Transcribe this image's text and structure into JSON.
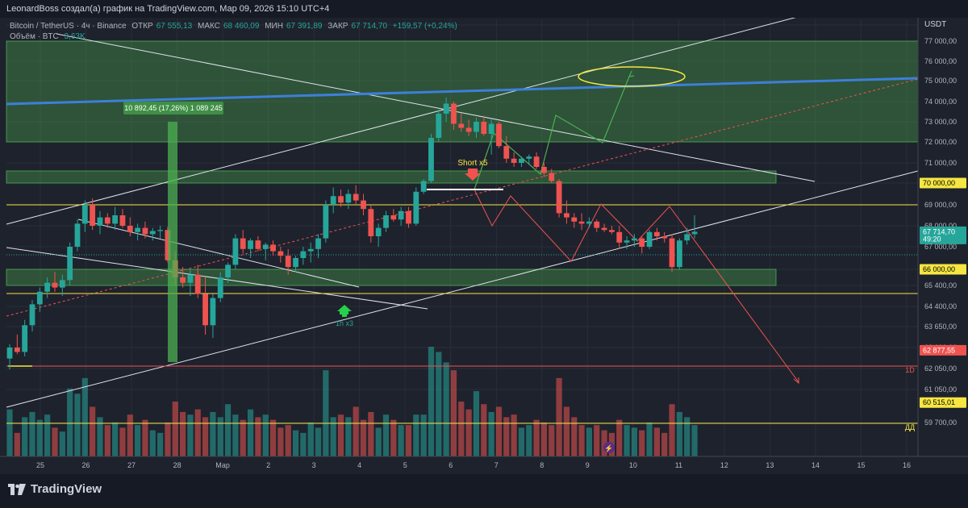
{
  "topbar": {
    "text": "LeonardBoss создал(а) график на TradingView.com, Мар 09, 2026 15:10 UTC+4"
  },
  "header": {
    "symbol": "Bitcoin / TetherUS · 4ч · Binance",
    "open_label": "ОТКР",
    "open": "67 555,13",
    "high_label": "МАКС",
    "high": "68 460,09",
    "low_label": "МИН",
    "low": "67 391,89",
    "close_label": "ЗАКР",
    "close": "67 714,70",
    "change": "+159,57 (+0,24%)",
    "volume_label": "Объём · BTC",
    "volume": "3,63K"
  },
  "currency": "USDT",
  "brand": "TradingView",
  "colors": {
    "bull": "#26a69a",
    "bear": "#ef5350",
    "zone": "#4caf50",
    "yellow": "#f5e642",
    "trend_blue": "#3d7fd9"
  },
  "chart_data": {
    "type": "candlestick",
    "timeframe": "4ч",
    "symbol": "BTCUSDT",
    "y_ticks": [
      78000,
      77000,
      76000,
      75000,
      74000,
      73000,
      72000,
      71000,
      70000,
      69000,
      68000,
      67000,
      66000,
      65400,
      64400,
      63650,
      63000,
      62050,
      61050,
      59700
    ],
    "y_tick_labels": [
      "78 000,00",
      "77 000,00",
      "76 000,00",
      "75 000,00",
      "74 000,00",
      "73 000,00",
      "72 000,00",
      "71 000,00",
      "70 000,00",
      "69 000,00",
      "68 000,00",
      "67 000,00",
      "66 000,00",
      "65 400,00",
      "64 400,00",
      "63 650,00",
      "63 000,00",
      "62 050,00",
      "61 050,00",
      "59 700,00"
    ],
    "x_labels": [
      "25",
      "26",
      "27",
      "28",
      "Мар",
      "2",
      "3",
      "4",
      "5",
      "6",
      "7",
      "8",
      "9",
      "10",
      "11",
      "12",
      "13",
      "14",
      "15",
      "16"
    ],
    "price_tags": [
      {
        "label": "70 000,00",
        "value": 70000,
        "style": "yellow"
      },
      {
        "label": "67 714,70",
        "sub": "49:20",
        "value": 67714.7,
        "style": "current"
      },
      {
        "label": "66 000,00",
        "value": 66000,
        "style": "yellow"
      },
      {
        "label": "62 877,55",
        "value": 62877.55,
        "style": "red"
      },
      {
        "label": "60 515,01",
        "value": 60515.01,
        "style": "yellow"
      }
    ],
    "candles": [
      [
        62500,
        63100,
        62000,
        63000,
        180
      ],
      [
        63000,
        63400,
        62700,
        62800,
        90
      ],
      [
        62800,
        63900,
        62600,
        63700,
        150
      ],
      [
        63700,
        64700,
        63500,
        64500,
        170
      ],
      [
        64500,
        65300,
        64200,
        65100,
        140
      ],
      [
        65100,
        65700,
        64800,
        65500,
        160
      ],
      [
        65500,
        65900,
        65100,
        65300,
        110
      ],
      [
        65300,
        65800,
        64900,
        65600,
        95
      ],
      [
        65600,
        67200,
        65400,
        67000,
        260
      ],
      [
        67000,
        68300,
        66800,
        68100,
        240
      ],
      [
        68100,
        69200,
        67700,
        69000,
        300
      ],
      [
        69000,
        69300,
        67800,
        68000,
        190
      ],
      [
        68000,
        68700,
        67600,
        68400,
        150
      ],
      [
        68400,
        68600,
        67900,
        68100,
        120
      ],
      [
        68100,
        68900,
        67800,
        68500,
        130
      ],
      [
        68500,
        68800,
        67900,
        68000,
        110
      ],
      [
        68000,
        68400,
        67500,
        67700,
        160
      ],
      [
        67700,
        68100,
        67300,
        67900,
        120
      ],
      [
        67900,
        68200,
        67400,
        67600,
        140
      ],
      [
        67600,
        67900,
        67300,
        67750,
        100
      ],
      [
        67750,
        68000,
        67400,
        67800,
        90
      ],
      [
        67800,
        67950,
        66300,
        66400,
        130
      ],
      [
        66400,
        66800,
        65400,
        65700,
        210
      ],
      [
        65700,
        66100,
        65300,
        65500,
        170
      ],
      [
        65500,
        66000,
        64900,
        65800,
        160
      ],
      [
        65800,
        66200,
        64800,
        65000,
        180
      ],
      [
        65000,
        65700,
        63400,
        63700,
        150
      ],
      [
        63700,
        65000,
        63300,
        64800,
        170
      ],
      [
        64800,
        65900,
        64600,
        65700,
        150
      ],
      [
        65700,
        66300,
        65500,
        66200,
        200
      ],
      [
        66200,
        67600,
        66000,
        67400,
        160
      ],
      [
        67400,
        67800,
        66700,
        66900,
        140
      ],
      [
        66900,
        67400,
        66500,
        67300,
        180
      ],
      [
        67300,
        67500,
        66800,
        66900,
        150
      ],
      [
        66900,
        67200,
        66400,
        67100,
        160
      ],
      [
        67100,
        67300,
        66600,
        66800,
        140
      ],
      [
        66800,
        67000,
        66300,
        66600,
        110
      ],
      [
        66600,
        66900,
        65800,
        66100,
        120
      ],
      [
        66100,
        66600,
        65900,
        66500,
        100
      ],
      [
        66500,
        67000,
        66200,
        66800,
        90
      ],
      [
        66800,
        67200,
        66300,
        66900,
        130
      ],
      [
        66900,
        67600,
        66500,
        67400,
        110
      ],
      [
        67400,
        69200,
        67200,
        69000,
        330
      ],
      [
        69000,
        69800,
        68600,
        69400,
        150
      ],
      [
        69400,
        69700,
        68900,
        69100,
        160
      ],
      [
        69100,
        69700,
        68800,
        69500,
        150
      ],
      [
        69500,
        69900,
        69000,
        69200,
        190
      ],
      [
        69200,
        69500,
        68500,
        68800,
        140
      ],
      [
        68800,
        69000,
        67200,
        67500,
        170
      ],
      [
        67500,
        68100,
        67000,
        67900,
        110
      ],
      [
        67900,
        68700,
        67700,
        68500,
        160
      ],
      [
        68500,
        68800,
        68200,
        68300,
        140
      ],
      [
        68300,
        68900,
        68000,
        68700,
        120
      ],
      [
        68700,
        68900,
        67900,
        68100,
        120
      ],
      [
        68100,
        69800,
        68000,
        69600,
        160
      ],
      [
        69600,
        70200,
        69500,
        70100,
        160
      ],
      [
        70100,
        72400,
        70000,
        72200,
        420
      ],
      [
        72200,
        73600,
        72000,
        73400,
        400
      ],
      [
        73400,
        74200,
        73000,
        73900,
        360
      ],
      [
        73900,
        74000,
        72600,
        72900,
        330
      ],
      [
        72900,
        73400,
        72500,
        72700,
        210
      ],
      [
        72700,
        73100,
        72300,
        72500,
        180
      ],
      [
        72500,
        73200,
        72200,
        73000,
        250
      ],
      [
        73000,
        73300,
        72300,
        72400,
        200
      ],
      [
        72400,
        73100,
        71400,
        72900,
        170
      ],
      [
        72900,
        73000,
        71700,
        71800,
        190
      ],
      [
        71800,
        72300,
        71000,
        71200,
        150
      ],
      [
        71200,
        71500,
        70800,
        71000,
        160
      ],
      [
        71000,
        71300,
        70800,
        71200,
        110
      ],
      [
        71200,
        71400,
        70900,
        71300,
        120
      ],
      [
        71300,
        71500,
        70700,
        70800,
        140
      ],
      [
        70800,
        71000,
        70300,
        70500,
        130
      ],
      [
        70500,
        70700,
        70000,
        70100,
        120
      ],
      [
        70100,
        70200,
        68400,
        68600,
        300
      ],
      [
        68600,
        69200,
        68100,
        68400,
        190
      ],
      [
        68400,
        68600,
        67900,
        68200,
        150
      ],
      [
        68200,
        68600,
        67800,
        68100,
        120
      ],
      [
        68100,
        68400,
        67900,
        68200,
        110
      ],
      [
        68200,
        68300,
        67700,
        67900,
        120
      ],
      [
        67900,
        68100,
        67700,
        67800,
        100
      ],
      [
        67800,
        68000,
        67600,
        67700,
        90
      ],
      [
        67700,
        68000,
        66900,
        67200,
        140
      ],
      [
        67200,
        67500,
        66900,
        67300,
        120
      ],
      [
        67300,
        67600,
        67000,
        67400,
        110
      ],
      [
        67400,
        67500,
        66700,
        67000,
        100
      ],
      [
        67000,
        67800,
        66900,
        67700,
        130
      ],
      [
        67700,
        67900,
        67300,
        67500,
        110
      ],
      [
        67500,
        67700,
        67200,
        67400,
        90
      ],
      [
        67400,
        67600,
        65900,
        66100,
        200
      ],
      [
        66100,
        67400,
        66000,
        67300,
        170
      ],
      [
        67300,
        67900,
        67100,
        67600,
        150
      ],
      [
        67600,
        68500,
        67400,
        67715,
        120
      ]
    ],
    "zones": [
      {
        "label": "upper",
        "from": 72000,
        "to": 77000
      },
      {
        "label": "mid",
        "from": 70000,
        "to": 70600
      },
      {
        "label": "low",
        "from": 65400,
        "to": 66000
      }
    ],
    "annotations": [
      {
        "text": "10 892,45 (17,26%) 1 089 245",
        "type": "measure"
      },
      {
        "text": "Short x5",
        "type": "signal"
      },
      {
        "text": "1h x3",
        "type": "signal"
      },
      {
        "text": "1D",
        "type": "level-label"
      },
      {
        "text": "ДД",
        "type": "level-label"
      }
    ]
  }
}
